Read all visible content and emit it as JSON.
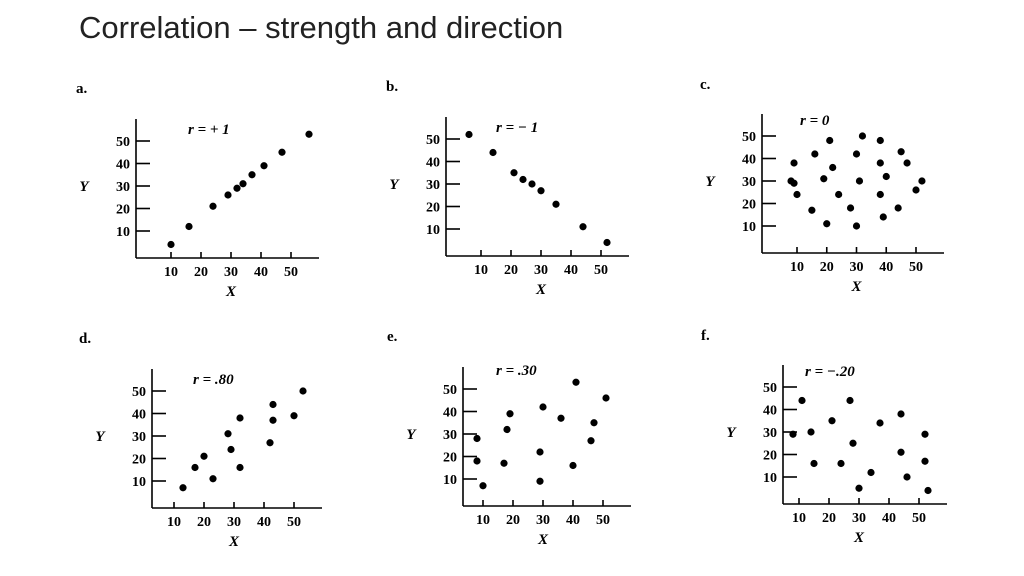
{
  "title": "Correlation – strength and direction",
  "chart_data": [
    {
      "type": "scatter",
      "panel": "a.",
      "title": "r = + 1",
      "xlabel": "X",
      "ylabel": "Y",
      "xticks": [
        "10",
        "20",
        "30",
        "40",
        "50"
      ],
      "yticks": [
        "10",
        "20",
        "30",
        "40",
        "50"
      ],
      "x": [
        10,
        16,
        24,
        29,
        32,
        34,
        37,
        41,
        47,
        56
      ],
      "y": [
        4,
        12,
        21,
        26,
        29,
        31,
        35,
        39,
        45,
        53
      ]
    },
    {
      "type": "scatter",
      "panel": "b.",
      "title": "r = − 1",
      "xlabel": "X",
      "ylabel": "Y",
      "xticks": [
        "10",
        "20",
        "30",
        "40",
        "50"
      ],
      "yticks": [
        "10",
        "20",
        "30",
        "40",
        "50"
      ],
      "x": [
        6,
        14,
        21,
        24,
        27,
        30,
        35,
        44,
        52
      ],
      "y": [
        52,
        44,
        35,
        32,
        30,
        27,
        21,
        11,
        4
      ]
    },
    {
      "type": "scatter",
      "panel": "c.",
      "title": "r = 0",
      "xlabel": "X",
      "ylabel": "Y",
      "xticks": [
        "10",
        "20",
        "30",
        "40",
        "50"
      ],
      "yticks": [
        "10",
        "20",
        "30",
        "40",
        "50"
      ],
      "x": [
        9,
        16,
        21,
        32,
        38,
        45,
        9,
        22,
        30,
        38,
        47,
        8,
        19,
        31,
        40,
        52,
        10,
        24,
        38,
        50,
        15,
        28,
        44,
        20,
        30,
        39
      ],
      "y": [
        38,
        42,
        48,
        50,
        48,
        43,
        29,
        36,
        42,
        38,
        38,
        30,
        31,
        30,
        32,
        30,
        24,
        24,
        24,
        26,
        17,
        18,
        18,
        11,
        10,
        14
      ]
    },
    {
      "type": "scatter",
      "panel": "d.",
      "title": "r = .80",
      "xlabel": "X",
      "ylabel": "Y",
      "xticks": [
        "10",
        "20",
        "30",
        "40",
        "50"
      ],
      "yticks": [
        "10",
        "20",
        "30",
        "40",
        "50"
      ],
      "x": [
        13,
        17,
        20,
        23,
        28,
        29,
        32,
        32,
        42,
        43,
        43,
        50,
        53
      ],
      "y": [
        7,
        16,
        21,
        11,
        31,
        24,
        16,
        38,
        27,
        37,
        44,
        39,
        50
      ]
    },
    {
      "type": "scatter",
      "panel": "e.",
      "title": "r = .30",
      "xlabel": "X",
      "ylabel": "Y",
      "xticks": [
        "10",
        "20",
        "30",
        "40",
        "50"
      ],
      "yticks": [
        "10",
        "20",
        "30",
        "40",
        "50"
      ],
      "x": [
        8,
        8,
        10,
        17,
        18,
        19,
        29,
        29,
        30,
        36,
        40,
        41,
        46,
        47,
        51
      ],
      "y": [
        28,
        18,
        7,
        17,
        32,
        39,
        22,
        9,
        42,
        37,
        16,
        53,
        27,
        35,
        46
      ]
    },
    {
      "type": "scatter",
      "panel": "f.",
      "title": "r = −.20",
      "xlabel": "X",
      "ylabel": "Y",
      "xticks": [
        "10",
        "20",
        "30",
        "40",
        "50"
      ],
      "yticks": [
        "10",
        "20",
        "30",
        "40",
        "50"
      ],
      "x": [
        8,
        11,
        14,
        15,
        21,
        24,
        27,
        28,
        30,
        34,
        37,
        44,
        44,
        46,
        52,
        52,
        53
      ],
      "y": [
        29,
        44,
        30,
        16,
        35,
        16,
        44,
        25,
        5,
        12,
        34,
        21,
        38,
        10,
        29,
        17,
        4
      ]
    }
  ]
}
